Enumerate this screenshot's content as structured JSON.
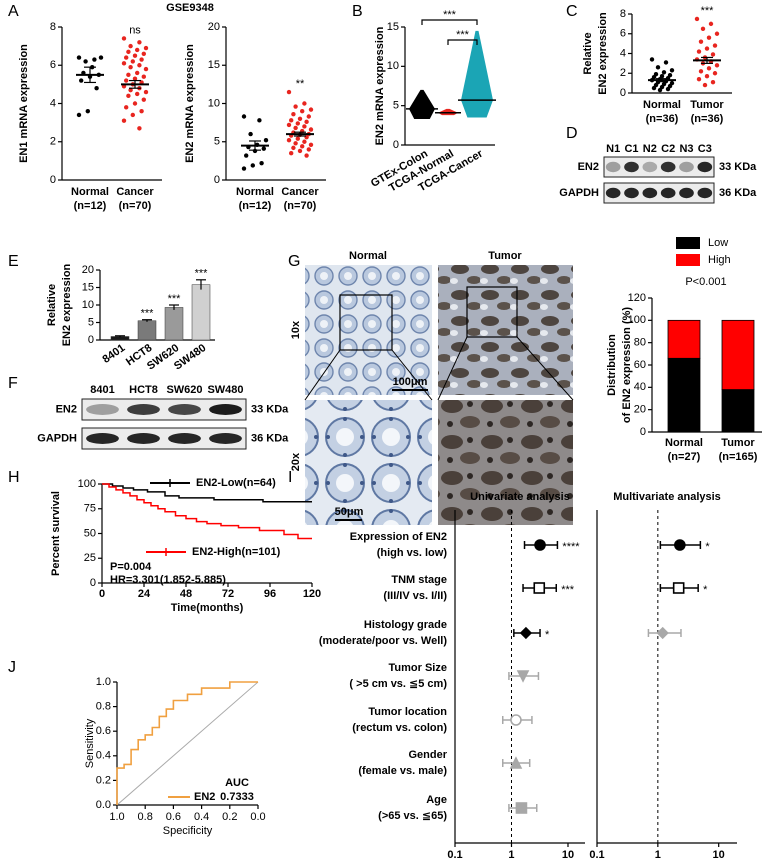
{
  "a": {
    "label": "A",
    "title": "GSE9348",
    "plots": [
      {
        "ylabel": "EN1 mRNA expression",
        "ylim": [
          0,
          8
        ],
        "yticks": [
          0,
          2,
          4,
          6,
          8
        ],
        "significance": "ns",
        "groups": [
          {
            "name": "Normal",
            "n": "(n=12)",
            "color": "#000000",
            "mean": 5.5,
            "sem": 0.4,
            "values": [
              6.4,
              6.3,
              6.2,
              6.4,
              5.9,
              5.6,
              5.5,
              5.4,
              5.2,
              4.8,
              3.6,
              3.4
            ]
          },
          {
            "name": "Cancer",
            "n": "(n=70)",
            "color": "#e8251f",
            "mean": 5.0,
            "sem": 0.2,
            "values": [
              7.4,
              7.2,
              7.0,
              6.9,
              6.8,
              6.7,
              6.6,
              6.5,
              6.4,
              6.3,
              6.2,
              6.1,
              6.0,
              5.9,
              5.8,
              5.6,
              5.5,
              5.4,
              5.3,
              5.2,
              5.1,
              5.0,
              4.9,
              4.8,
              4.7,
              4.6,
              4.5,
              4.4,
              4.2,
              4.0,
              3.8,
              3.6,
              3.4,
              3.1,
              2.7
            ]
          }
        ]
      },
      {
        "ylabel": "EN2 mRNA expression",
        "ylim": [
          0,
          20
        ],
        "yticks": [
          0,
          5,
          10,
          15,
          20
        ],
        "significance": "**",
        "groups": [
          {
            "name": "Normal",
            "n": "(n=12)",
            "color": "#000000",
            "mean": 4.5,
            "sem": 0.6,
            "values": [
              8.3,
              7.8,
              6.0,
              5.2,
              4.6,
              4.3,
              4.1,
              3.8,
              3.2,
              2.2,
              1.9,
              1.5
            ]
          },
          {
            "name": "Cancer",
            "n": "(n=70)",
            "color": "#e8251f",
            "mean": 6.0,
            "sem": 0.25,
            "values": [
              11.5,
              10.0,
              9.6,
              9.2,
              9.0,
              8.6,
              8.3,
              8.0,
              7.8,
              7.6,
              7.4,
              7.2,
              7.0,
              6.8,
              6.6,
              6.4,
              6.2,
              6.0,
              5.9,
              5.8,
              5.6,
              5.4,
              5.2,
              5.0,
              4.8,
              4.6,
              4.4,
              4.2,
              4.0,
              3.8,
              3.5,
              3.2
            ]
          }
        ]
      }
    ]
  },
  "b": {
    "label": "B",
    "ylabel": "EN2 mRNA expression",
    "ylim": [
      0,
      15
    ],
    "yticks": [
      0,
      5,
      10,
      15
    ],
    "significance": [
      "***",
      "***"
    ],
    "groups": [
      {
        "name": "GTEx-Colon",
        "color": "#000000",
        "min": 3.3,
        "max": 7.0,
        "mean": 4.6
      },
      {
        "name": "TCGA-Normal",
        "color": "#e8251f",
        "min": 3.8,
        "max": 4.6,
        "mean": 4.1
      },
      {
        "name": "TCGA-Cancer",
        "color": "#1ba5b5",
        "min": 3.5,
        "max": 14.5,
        "mean": 5.7
      }
    ]
  },
  "c": {
    "label": "C",
    "ylabel": [
      "Relative",
      "EN2 expression"
    ],
    "ylim": [
      0,
      8
    ],
    "yticks": [
      0,
      2,
      4,
      6,
      8
    ],
    "significance": "***",
    "groups": [
      {
        "name": "Normal",
        "n": "(n=36)",
        "color": "#000000",
        "mean": 1.3,
        "sem": 0.15,
        "values": [
          3.4,
          3.1,
          2.6,
          2.3,
          2.1,
          1.9,
          1.8,
          1.7,
          1.6,
          1.5,
          1.4,
          1.3,
          1.2,
          1.1,
          1.0,
          0.9,
          0.8,
          0.7,
          0.6,
          0.5,
          0.4,
          0.3
        ]
      },
      {
        "name": "Tumor",
        "n": "(n=36)",
        "color": "#e8251f",
        "mean": 3.3,
        "sem": 0.3,
        "values": [
          7.5,
          7.0,
          6.5,
          6.0,
          5.6,
          5.2,
          4.8,
          4.5,
          4.2,
          3.9,
          3.6,
          3.4,
          3.2,
          3.0,
          2.8,
          2.5,
          2.2,
          2.0,
          1.7,
          1.4,
          1.1,
          0.8
        ]
      }
    ]
  },
  "d": {
    "label": "D",
    "lanes": [
      "N1",
      "C1",
      "N2",
      "C2",
      "N3",
      "C3"
    ],
    "rows": [
      {
        "name": "EN2",
        "size": "33 KDa"
      },
      {
        "name": "GAPDH",
        "size": "36 KDa"
      }
    ]
  },
  "e": {
    "label": "E",
    "ylabel": [
      "Relative",
      "EN2 expression"
    ],
    "ylim": [
      0,
      20
    ],
    "yticks": [
      0,
      5,
      10,
      15,
      20
    ],
    "categories": [
      "8401",
      "HCT8",
      "SW620",
      "SW480"
    ],
    "values": [
      1,
      5.5,
      9.3,
      15.8
    ],
    "errors": [
      0.2,
      0.3,
      0.7,
      1.4
    ],
    "colors": [
      "#1a1a1a",
      "#7a7a7a",
      "#9a9a9a",
      "#d0d0d0"
    ],
    "significance": [
      null,
      "***",
      "***",
      "***"
    ]
  },
  "f": {
    "label": "F",
    "lanes": [
      "8401",
      "HCT8",
      "SW620",
      "SW480"
    ],
    "rows": [
      {
        "name": "EN2",
        "size": "33 KDa"
      },
      {
        "name": "GAPDH",
        "size": "36 KDa"
      }
    ]
  },
  "g": {
    "label": "G",
    "columns": [
      "Normal",
      "Tumor"
    ],
    "rows": [
      "10x",
      "20x"
    ],
    "scale_bars": [
      "100μm",
      "50μm"
    ],
    "chart": {
      "ylabel": [
        "Distribution",
        "of EN2 expression (%)"
      ],
      "ylim": [
        0,
        120
      ],
      "yticks": [
        0,
        20,
        40,
        60,
        80,
        100,
        120
      ],
      "annotation": "P<0.001",
      "categories": [
        "Normal",
        "Tumor"
      ],
      "n": [
        "(n=27)",
        "(n=165)"
      ],
      "series": [
        {
          "name": "Low",
          "color": "#000000",
          "values": [
            66,
            38
          ]
        },
        {
          "name": "High",
          "color": "#ff0000",
          "values": [
            34,
            62
          ]
        }
      ]
    }
  },
  "h": {
    "label": "H",
    "ylabel": "Percent survival",
    "xlabel": "Time(months)",
    "xlim": [
      0,
      120
    ],
    "ylim": [
      0,
      100
    ],
    "xticks": [
      0,
      24,
      48,
      72,
      96,
      120
    ],
    "yticks": [
      0,
      25,
      50,
      75,
      100
    ],
    "series": [
      {
        "name": "EN2-Low(n=64)",
        "color": "#000000",
        "x": [
          0,
          6,
          6,
          12,
          12,
          18,
          18,
          26,
          26,
          36,
          36,
          44,
          44,
          64,
          64,
          92,
          92,
          120
        ],
        "y": [
          100,
          100,
          98,
          98,
          96,
          96,
          94,
          94,
          92,
          92,
          88,
          88,
          86,
          86,
          84,
          84,
          82,
          82
        ]
      },
      {
        "name": "EN2-High(n=101)",
        "color": "#ff0000",
        "x": [
          0,
          4,
          4,
          8,
          8,
          12,
          12,
          16,
          16,
          20,
          20,
          24,
          24,
          28,
          28,
          32,
          32,
          36,
          36,
          42,
          42,
          48,
          48,
          54,
          54,
          60,
          60,
          68,
          68,
          78,
          78,
          90,
          90,
          104,
          104,
          112,
          112,
          120
        ],
        "y": [
          100,
          100,
          97,
          97,
          94,
          94,
          91,
          91,
          88,
          88,
          84,
          84,
          81,
          81,
          78,
          78,
          75,
          75,
          72,
          72,
          68,
          68,
          65,
          65,
          62,
          62,
          60,
          60,
          58,
          58,
          56,
          56,
          53,
          53,
          49,
          49,
          45,
          45
        ]
      }
    ],
    "annotations": [
      "P=0.004",
      "HR=3.301(1.852-5.885)"
    ]
  },
  "i": {
    "label": "I",
    "xlim": [
      0.1,
      20
    ],
    "xticks": [
      0.1,
      1,
      10
    ],
    "log": true,
    "reference_line": 1,
    "rows": [
      {
        "label": [
          "Expression of EN2",
          "(high vs. low)"
        ],
        "marker": "circle"
      },
      {
        "label": [
          "TNM stage",
          "(III/IV vs. I/II)"
        ],
        "marker": "open-square"
      },
      {
        "label": [
          "Histology grade",
          "(moderate/poor vs. Well)"
        ],
        "marker": "diamond"
      },
      {
        "label": [
          "Tumor Size",
          "( >5 cm  vs. ≦5 cm)"
        ],
        "marker": "triangle-down"
      },
      {
        "label": [
          "Tumor location",
          "(rectum vs. colon)"
        ],
        "marker": "open-circle"
      },
      {
        "label": [
          "Gender",
          "(female vs. male)"
        ],
        "marker": "triangle-up"
      },
      {
        "label": [
          "Age",
          "(>65 vs. ≦65)"
        ],
        "marker": "square"
      }
    ],
    "analyses": [
      {
        "title": "Univariate analysis",
        "estimates": [
          3.2,
          3.1,
          1.8,
          1.6,
          1.2,
          1.2,
          1.5
        ],
        "lower": [
          1.7,
          1.6,
          1.1,
          0.9,
          0.7,
          0.7,
          0.9
        ],
        "upper": [
          6.5,
          6.2,
          3.2,
          3.0,
          2.3,
          2.1,
          2.8
        ],
        "significance": [
          "****",
          "***",
          "*",
          null,
          null,
          null,
          null
        ],
        "colors": [
          "#000000",
          "#000000",
          "#000000",
          "#a8a8a8",
          "#a8a8a8",
          "#a8a8a8",
          "#a8a8a8"
        ]
      },
      {
        "title": "Multivariate analysis",
        "estimates": [
          2.3,
          2.2,
          1.2,
          null,
          null,
          null,
          null
        ],
        "lower": [
          1.1,
          1.1,
          0.7,
          null,
          null,
          null,
          null
        ],
        "upper": [
          5.0,
          4.6,
          2.4,
          null,
          null,
          null,
          null
        ],
        "significance": [
          "*",
          "*",
          null,
          null,
          null,
          null,
          null
        ],
        "colors": [
          "#000000",
          "#000000",
          "#a8a8a8",
          null,
          null,
          null,
          null
        ]
      }
    ]
  },
  "j": {
    "label": "J",
    "xlabel": "Specificity",
    "ylabel": "Sensitivity",
    "xlim": [
      1,
      0
    ],
    "ylim": [
      0,
      1
    ],
    "xticks": [
      {
        "value": 1,
        "label": "1.0"
      },
      0.8,
      0.6,
      0.4,
      0.2,
      {
        "value": 0,
        "label": "0.0"
      }
    ],
    "yticks": [
      {
        "value": 0,
        "label": "0.0"
      },
      0.2,
      0.4,
      0.6,
      0.8,
      {
        "value": 1,
        "label": "1.0"
      }
    ],
    "series": {
      "name": "EN2",
      "color": "#f0a040",
      "x": [
        1.0,
        1.0,
        0.95,
        0.95,
        0.9,
        0.9,
        0.85,
        0.85,
        0.8,
        0.8,
        0.75,
        0.75,
        0.7,
        0.7,
        0.65,
        0.65,
        0.6,
        0.6,
        0.5,
        0.5,
        0.4,
        0.4,
        0.2,
        0.2,
        0.0
      ],
      "y": [
        0,
        0.3,
        0.3,
        0.33,
        0.33,
        0.45,
        0.45,
        0.53,
        0.53,
        0.57,
        0.57,
        0.63,
        0.63,
        0.72,
        0.72,
        0.78,
        0.78,
        0.85,
        0.85,
        0.9,
        0.9,
        0.95,
        0.95,
        1,
        1
      ]
    },
    "auc_label": "AUC",
    "auc": 0.7333
  }
}
